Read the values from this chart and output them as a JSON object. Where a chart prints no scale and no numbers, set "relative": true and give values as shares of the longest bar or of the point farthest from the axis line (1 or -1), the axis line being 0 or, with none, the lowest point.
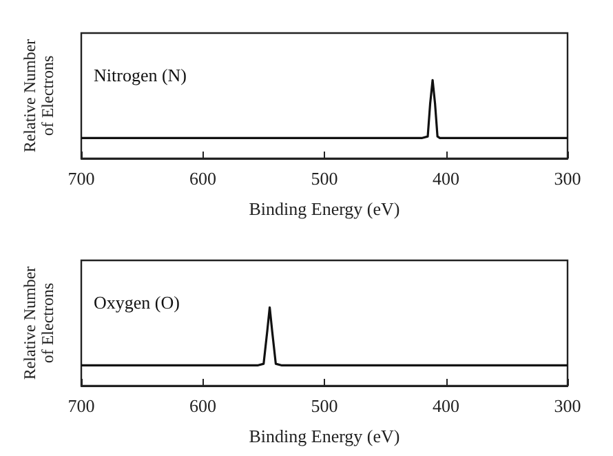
{
  "chart_data": [
    {
      "type": "line",
      "relative": true,
      "xlabel": "Binding Energy (eV)",
      "ylabel": "Relative Number of Electrons",
      "annotations": [
        "Nitrogen (N)"
      ],
      "xlim": [
        700,
        300
      ],
      "xticks": [
        700,
        600,
        500,
        400,
        300
      ],
      "tick_labels": "x",
      "grid": false,
      "legend": false,
      "marker": "none",
      "line_style": "solid",
      "series": [
        {
          "color": "#111111",
          "x": [
            700,
            420,
            415,
            413,
            411,
            409,
            407,
            405,
            400,
            300
          ],
          "values": [
            0.26,
            0.26,
            0.28,
            0.7,
            1,
            0.7,
            0.28,
            0.26,
            0.26,
            0.26
          ]
        }
      ]
    },
    {
      "type": "line",
      "relative": true,
      "xlabel": "Binding Energy (eV)",
      "ylabel": "Relative Number of Electrons",
      "annotations": [
        "Oxygen (O)"
      ],
      "xlim": [
        700,
        300
      ],
      "xticks": [
        700,
        600,
        500,
        400,
        300
      ],
      "tick_labels": "x",
      "grid": false,
      "legend": false,
      "marker": "none",
      "line_style": "solid",
      "series": [
        {
          "color": "#111111",
          "x": [
            700,
            555,
            550,
            547,
            545,
            543,
            540,
            535,
            300
          ],
          "values": [
            0.26,
            0.26,
            0.28,
            0.7,
            1,
            0.7,
            0.28,
            0.26,
            0.26
          ]
        }
      ]
    }
  ]
}
